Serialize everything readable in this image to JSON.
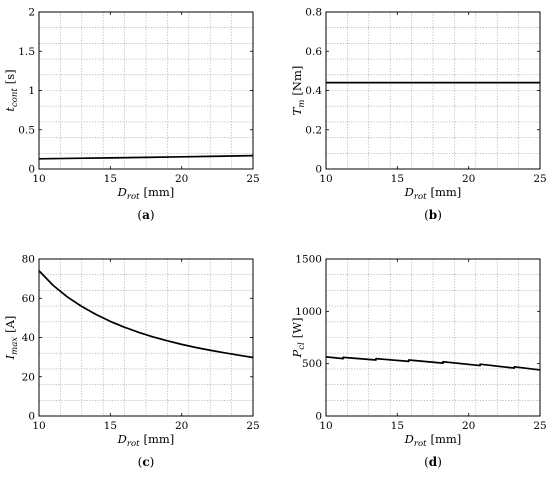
{
  "chart_data": [
    {
      "type": "line",
      "caption": "a",
      "xlabel": {
        "main": "D",
        "sub": "rot",
        "unit": "[mm]"
      },
      "ylabel": {
        "main": "t",
        "sub": "cont",
        "unit": "[s]"
      },
      "xlim": [
        10,
        25
      ],
      "ylim": [
        0,
        2
      ],
      "xticks": [
        10,
        15,
        20,
        25
      ],
      "xtick_labels": [
        "10",
        "15",
        "20",
        "25"
      ],
      "yticks": [
        0,
        0.5,
        1,
        1.5,
        2
      ],
      "ytick_labels": [
        "0",
        "0.5",
        "1",
        "1.5",
        "2"
      ],
      "minor_grid": 10,
      "grid": true,
      "series": [
        {
          "x": [
            10,
            12.5,
            15,
            17.5,
            20,
            22.5,
            25
          ],
          "y": [
            0.13,
            0.136,
            0.142,
            0.148,
            0.155,
            0.162,
            0.17
          ]
        }
      ]
    },
    {
      "type": "line",
      "caption": "b",
      "xlabel": {
        "main": "D",
        "sub": "rot",
        "unit": "[mm]"
      },
      "ylabel": {
        "main": "T",
        "sub": "m",
        "unit": "[Nm]"
      },
      "xlim": [
        10,
        25
      ],
      "ylim": [
        0,
        0.8
      ],
      "xticks": [
        10,
        15,
        20,
        25
      ],
      "xtick_labels": [
        "10",
        "15",
        "20",
        "25"
      ],
      "yticks": [
        0,
        0.2,
        0.4,
        0.6,
        0.8
      ],
      "ytick_labels": [
        "0",
        "0.2",
        "0.4",
        "0.6",
        "0.8"
      ],
      "minor_grid": 10,
      "grid": true,
      "series": [
        {
          "x": [
            10,
            25
          ],
          "y": [
            0.44,
            0.44
          ]
        }
      ]
    },
    {
      "type": "line",
      "caption": "c",
      "xlabel": {
        "main": "D",
        "sub": "rot",
        "unit": "[mm]"
      },
      "ylabel": {
        "main": "I",
        "sub": "max",
        "unit": "[A]"
      },
      "xlim": [
        10,
        25
      ],
      "ylim": [
        0,
        80
      ],
      "xticks": [
        10,
        15,
        20,
        25
      ],
      "xtick_labels": [
        "10",
        "15",
        "20",
        "25"
      ],
      "yticks": [
        0,
        20,
        40,
        60,
        80
      ],
      "ytick_labels": [
        "0",
        "20",
        "40",
        "60",
        "80"
      ],
      "minor_grid": 10,
      "grid": true,
      "series": [
        {
          "x": [
            10,
            11,
            12,
            13,
            14,
            15,
            16,
            17,
            18,
            19,
            20,
            21,
            22,
            23,
            24,
            25
          ],
          "y": [
            74,
            66.5,
            60.6,
            55.8,
            51.7,
            48.2,
            45.2,
            42.6,
            40.3,
            38.3,
            36.5,
            34.9,
            33.5,
            32.2,
            31,
            29.8
          ]
        }
      ]
    },
    {
      "type": "line",
      "caption": "d",
      "xlabel": {
        "main": "D",
        "sub": "rot",
        "unit": "[mm]"
      },
      "ylabel": {
        "main": "P",
        "sub": "cl",
        "unit": "[W]"
      },
      "xlim": [
        10,
        25
      ],
      "ylim": [
        0,
        1500
      ],
      "xticks": [
        10,
        15,
        20,
        25
      ],
      "xtick_labels": [
        "10",
        "15",
        "20",
        "25"
      ],
      "yticks": [
        0,
        500,
        1000,
        1500
      ],
      "ytick_labels": [
        "0",
        "500",
        "1000",
        "1500"
      ],
      "minor_grid": 10,
      "grid": true,
      "series": [
        {
          "x": [
            10,
            11.2,
            11.2,
            13.5,
            13.5,
            15.8,
            15.8,
            18.2,
            18.2,
            20.8,
            20.8,
            23.2,
            23.2,
            25
          ],
          "y": [
            565,
            548,
            560,
            535,
            548,
            522,
            535,
            505,
            518,
            482,
            495,
            458,
            470,
            440
          ]
        }
      ]
    }
  ]
}
